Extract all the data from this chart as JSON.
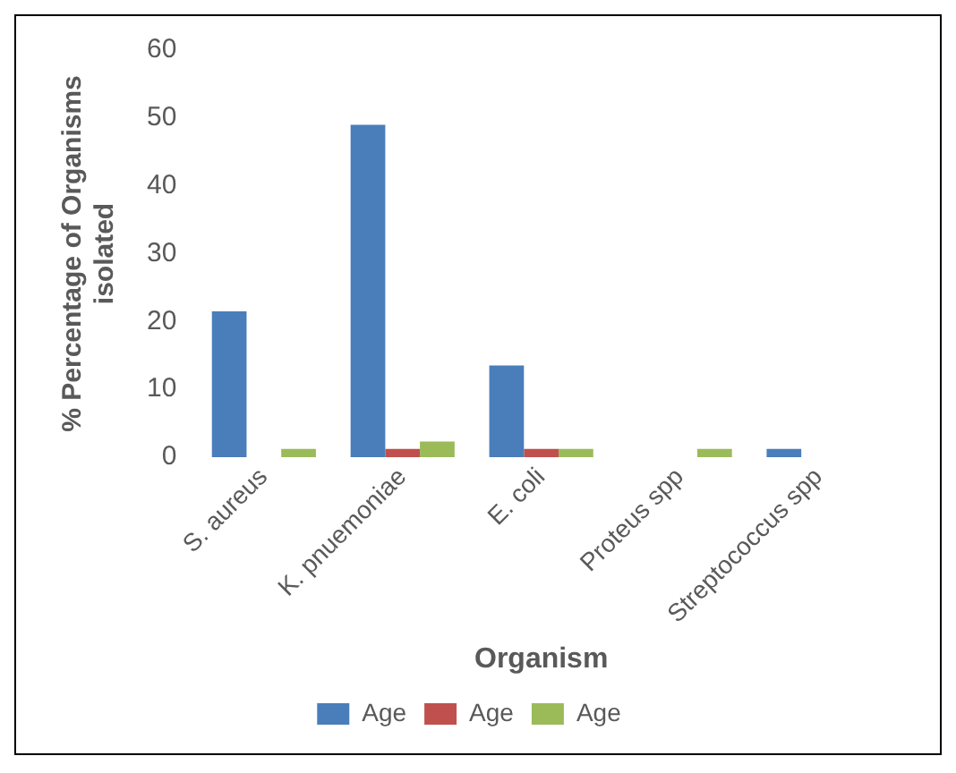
{
  "chart_data": {
    "type": "bar",
    "xlabel": "Organism",
    "ylabel": "% Percentage of Organisms isolated",
    "categories": [
      "S. aureus",
      "K. pnuemoniae",
      "E. coli",
      "Proteus spp",
      "Streptococcus spp"
    ],
    "series": [
      {
        "name": "Age",
        "color": "#4a7ebb",
        "values": [
          21.5,
          49,
          13.5,
          0,
          1.2
        ]
      },
      {
        "name": "Age",
        "color": "#c0504d",
        "values": [
          0,
          1.2,
          1.2,
          0,
          0
        ]
      },
      {
        "name": "Age",
        "color": "#9bbb59",
        "values": [
          1.2,
          2.3,
          1.2,
          1.2,
          0
        ]
      }
    ],
    "ylim": [
      0,
      60
    ],
    "yticks": [
      0,
      10,
      20,
      30,
      40,
      50,
      60
    ],
    "grid": false,
    "legend": "bottom"
  }
}
